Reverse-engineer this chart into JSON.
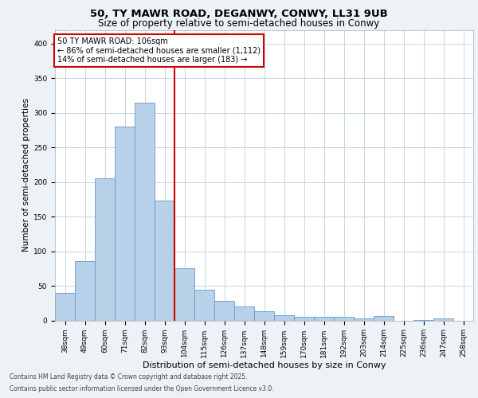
{
  "title_line1": "50, TY MAWR ROAD, DEGANWY, CONWY, LL31 9UB",
  "title_line2": "Size of property relative to semi-detached houses in Conwy",
  "xlabel": "Distribution of semi-detached houses by size in Conwy",
  "ylabel": "Number of semi-detached properties",
  "categories": [
    "38sqm",
    "49sqm",
    "60sqm",
    "71sqm",
    "82sqm",
    "93sqm",
    "104sqm",
    "115sqm",
    "126sqm",
    "137sqm",
    "148sqm",
    "159sqm",
    "170sqm",
    "181sqm",
    "192sqm",
    "203sqm",
    "214sqm",
    "225sqm",
    "236sqm",
    "247sqm",
    "258sqm"
  ],
  "values": [
    40,
    86,
    205,
    280,
    315,
    173,
    75,
    44,
    28,
    20,
    13,
    8,
    5,
    5,
    5,
    3,
    6,
    0,
    1,
    3,
    0
  ],
  "bar_color": "#b8d0e8",
  "bar_edge_color": "#6699cc",
  "vline_color": "#cc0000",
  "vline_pos": 6,
  "annotation_title": "50 TY MAWR ROAD: 106sqm",
  "annotation_line2": "← 86% of semi-detached houses are smaller (1,112)",
  "annotation_line3": "14% of semi-detached houses are larger (183) →",
  "annotation_box_facecolor": "#ffffff",
  "annotation_box_edgecolor": "#cc0000",
  "ylim": [
    0,
    420
  ],
  "yticks": [
    0,
    50,
    100,
    150,
    200,
    250,
    300,
    350,
    400
  ],
  "footer_line1": "Contains HM Land Registry data © Crown copyright and database right 2025.",
  "footer_line2": "Contains public sector information licensed under the Open Government Licence v3.0.",
  "bg_color": "#edf2f7",
  "plot_bg_color": "#ffffff",
  "grid_color": "#c5d5e5",
  "title_fontsize": 9.5,
  "subtitle_fontsize": 8.5,
  "xlabel_fontsize": 8,
  "ylabel_fontsize": 7.5,
  "tick_fontsize": 6.5,
  "annotation_fontsize": 7,
  "footer_fontsize": 5.5
}
